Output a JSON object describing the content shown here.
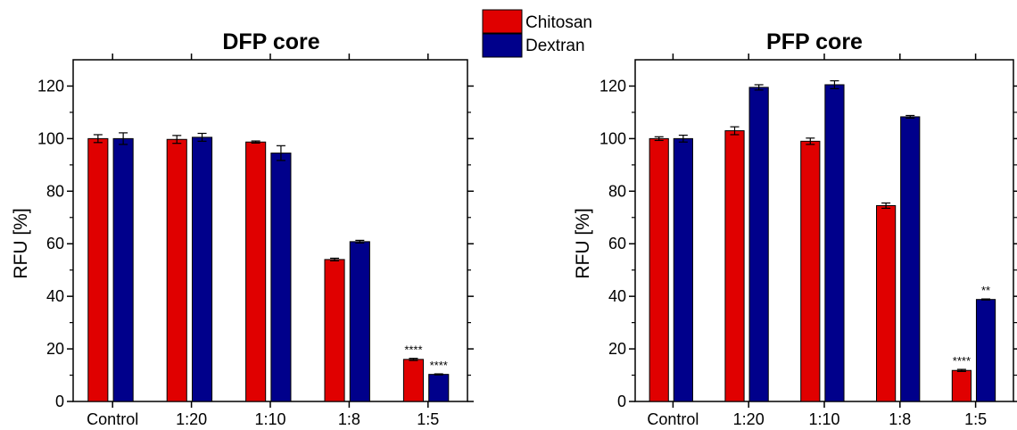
{
  "legend": [
    {
      "label": "Chitosan",
      "color": "#e00000"
    },
    {
      "label": "Dextran",
      "color": "#00008b"
    }
  ],
  "chart_data": [
    {
      "type": "bar",
      "title": "DFP core",
      "xlabel": "",
      "ylabel": "RFU [%]",
      "ylim": [
        0,
        130
      ],
      "yticks": [
        0,
        20,
        40,
        60,
        80,
        100,
        120
      ],
      "categories": [
        "Control",
        "1:20",
        "1:10",
        "1:8",
        "1:5"
      ],
      "series": [
        {
          "name": "Chitosan",
          "color": "#e00000",
          "values": [
            100,
            99.7,
            98.7,
            54,
            16
          ],
          "errors": [
            1.5,
            1.5,
            0.4,
            0.5,
            0.4
          ],
          "labels": [
            "",
            "",
            "",
            "",
            "****"
          ]
        },
        {
          "name": "Dextran",
          "color": "#00008b",
          "values": [
            100,
            100.5,
            94.5,
            60.8,
            10.3
          ],
          "errors": [
            2.2,
            1.5,
            2.8,
            0.5,
            0.2
          ],
          "labels": [
            "",
            "",
            "",
            "",
            "****"
          ]
        }
      ]
    },
    {
      "type": "bar",
      "title": "PFP core",
      "xlabel": "",
      "ylabel": "RFU [%]",
      "ylim": [
        0,
        130
      ],
      "yticks": [
        0,
        20,
        40,
        60,
        80,
        100,
        120
      ],
      "categories": [
        "Control",
        "1:20",
        "1:10",
        "1:8",
        "1:5"
      ],
      "series": [
        {
          "name": "Chitosan",
          "color": "#e00000",
          "values": [
            100,
            103,
            99,
            74.5,
            11.8
          ],
          "errors": [
            0.7,
            1.5,
            1.2,
            1.0,
            0.4
          ],
          "labels": [
            "",
            "",
            "",
            "",
            "****"
          ]
        },
        {
          "name": "Dextran",
          "color": "#00008b",
          "values": [
            100,
            119.5,
            120.5,
            108.3,
            38.8
          ],
          "errors": [
            1.3,
            1.0,
            1.5,
            0.5,
            0.2
          ],
          "labels": [
            "",
            "",
            "",
            "",
            "**"
          ]
        }
      ]
    }
  ]
}
